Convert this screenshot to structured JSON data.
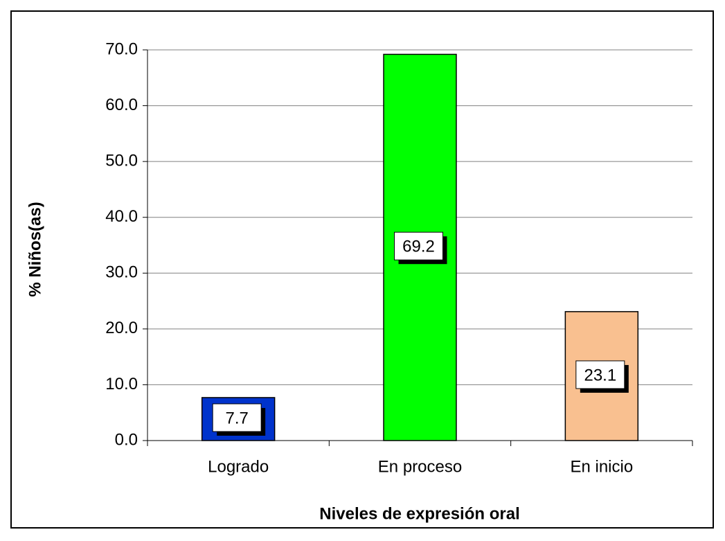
{
  "chart_data": {
    "type": "bar",
    "xlabel": "Niveles de expresión oral",
    "ylabel": "% Niños(as)",
    "categories": [
      "Logrado",
      "En proceso",
      "En inicio"
    ],
    "values": [
      7.7,
      69.2,
      23.1
    ],
    "colors": [
      "#0033cc",
      "#00ff00",
      "#f9c090"
    ],
    "ylim": [
      0,
      70
    ],
    "yticks": [
      {
        "value": 0,
        "label": "0.0"
      },
      {
        "value": 10,
        "label": "10.0"
      },
      {
        "value": 20,
        "label": "20.0"
      },
      {
        "value": 30,
        "label": "30.0"
      },
      {
        "value": 40,
        "label": "40.0"
      },
      {
        "value": 50,
        "label": "50.0"
      },
      {
        "value": 60,
        "label": "60.0"
      },
      {
        "value": 70,
        "label": "70.0"
      }
    ],
    "grid": true
  }
}
